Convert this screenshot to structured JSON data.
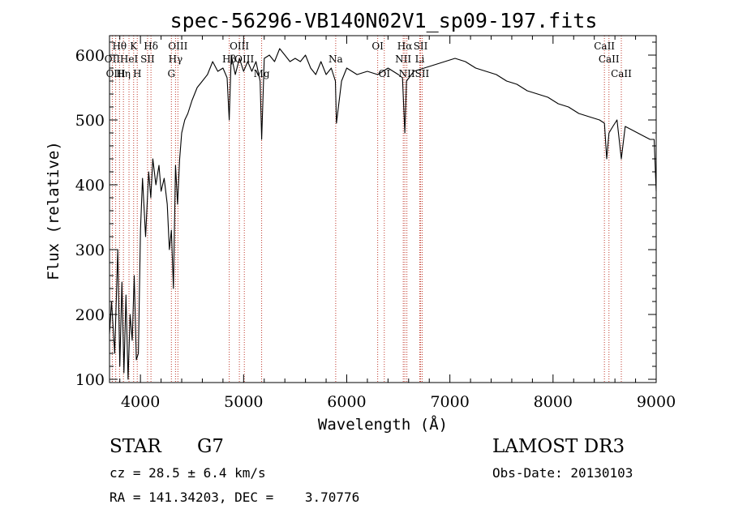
{
  "chart_data": {
    "type": "line",
    "title": "spec-56296-VB140N02V1_sp09-197.fits",
    "xlabel": "Wavelength (Å)",
    "ylabel": "Flux (relative)",
    "xlim": [
      3700,
      9000
    ],
    "ylim": [
      95,
      630
    ],
    "x_ticks": [
      4000,
      5000,
      6000,
      7000,
      8000,
      9000
    ],
    "y_ticks": [
      100,
      200,
      300,
      400,
      500,
      600
    ],
    "series": [
      {
        "name": "spectrum",
        "x": [
          3700,
          3720,
          3750,
          3780,
          3800,
          3820,
          3840,
          3860,
          3880,
          3900,
          3920,
          3940,
          3960,
          3980,
          4000,
          4020,
          4050,
          4080,
          4100,
          4120,
          4150,
          4180,
          4200,
          4230,
          4260,
          4280,
          4300,
          4320,
          4340,
          4360,
          4380,
          4400,
          4430,
          4460,
          4500,
          4550,
          4600,
          4650,
          4700,
          4750,
          4800,
          4840,
          4861,
          4880,
          4920,
          4960,
          5000,
          5040,
          5080,
          5120,
          5160,
          5175,
          5200,
          5250,
          5300,
          5350,
          5400,
          5450,
          5500,
          5550,
          5600,
          5650,
          5700,
          5750,
          5800,
          5850,
          5890,
          5900,
          5950,
          6000,
          6100,
          6200,
          6300,
          6400,
          6500,
          6540,
          6563,
          6580,
          6650,
          6750,
          6850,
          6950,
          7050,
          7150,
          7250,
          7350,
          7450,
          7550,
          7650,
          7750,
          7850,
          7950,
          8050,
          8150,
          8250,
          8350,
          8450,
          8498,
          8520,
          8542,
          8580,
          8620,
          8662,
          8700,
          8760,
          8820,
          8880,
          8940,
          8980,
          9000
        ],
        "y": [
          170,
          220,
          140,
          300,
          120,
          250,
          110,
          230,
          100,
          200,
          160,
          260,
          130,
          140,
          330,
          410,
          320,
          420,
          380,
          440,
          400,
          430,
          390,
          410,
          370,
          300,
          330,
          240,
          430,
          370,
          440,
          480,
          500,
          510,
          530,
          550,
          560,
          570,
          590,
          575,
          580,
          565,
          500,
          600,
          570,
          595,
          575,
          590,
          575,
          590,
          560,
          470,
          595,
          600,
          590,
          610,
          600,
          590,
          595,
          590,
          600,
          580,
          570,
          590,
          570,
          580,
          560,
          495,
          560,
          580,
          570,
          575,
          570,
          580,
          570,
          565,
          480,
          560,
          575,
          580,
          585,
          590,
          595,
          590,
          580,
          575,
          570,
          560,
          555,
          545,
          540,
          535,
          525,
          520,
          510,
          505,
          500,
          495,
          440,
          480,
          490,
          500,
          440,
          490,
          485,
          480,
          475,
          470,
          470,
          390
        ]
      }
    ],
    "spectral_lines": [
      {
        "label": "Hθ",
        "x": 3797,
        "row": 1
      },
      {
        "label": "OII",
        "x": 3727,
        "row": 2
      },
      {
        "label": "OIII",
        "x": 3760,
        "row": 3
      },
      {
        "label": "K",
        "x": 3934,
        "row": 1
      },
      {
        "label": "HeI",
        "x": 3889,
        "row": 2
      },
      {
        "label": "Hη",
        "x": 3835,
        "row": 3
      },
      {
        "label": "SII",
        "x": 4069,
        "row": 2
      },
      {
        "label": "H",
        "x": 3969,
        "row": 3
      },
      {
        "label": "Hδ",
        "x": 4102,
        "row": 1
      },
      {
        "label": "OIII",
        "x": 4363,
        "row": 1
      },
      {
        "label": "Hγ",
        "x": 4340,
        "row": 2
      },
      {
        "label": "G",
        "x": 4300,
        "row": 3
      },
      {
        "label": "OIII",
        "x": 4959,
        "row": 1
      },
      {
        "label": "Hβ",
        "x": 4861,
        "row": 2
      },
      {
        "label": "OIII",
        "x": 5007,
        "row": 2
      },
      {
        "label": "Mg",
        "x": 5175,
        "row": 3
      },
      {
        "label": "Na",
        "x": 5893,
        "row": 2
      },
      {
        "label": "OI",
        "x": 6300,
        "row": 1
      },
      {
        "label": "OI",
        "x": 6364,
        "row": 3
      },
      {
        "label": "Hα",
        "x": 6563,
        "row": 1
      },
      {
        "label": "SII",
        "x": 6716,
        "row": 1
      },
      {
        "label": "NII",
        "x": 6548,
        "row": 2
      },
      {
        "label": "NII",
        "x": 6583,
        "row": 3
      },
      {
        "label": "SII",
        "x": 6731,
        "row": 3
      },
      {
        "label": "Li",
        "x": 6708,
        "row": 2
      },
      {
        "label": "CaII",
        "x": 8498,
        "row": 1
      },
      {
        "label": "CaII",
        "x": 8542,
        "row": 2
      },
      {
        "label": "CaII",
        "x": 8662,
        "row": 3
      }
    ]
  },
  "info": {
    "object_class": "STAR",
    "subclass": "G7",
    "survey": "LAMOST DR3",
    "redshift": "cz = 28.5 ± 6.4 km/s",
    "obs_date": "Obs-Date: 20130103",
    "coords": "RA = 141.34203, DEC =    3.70776"
  },
  "colors": {
    "line_marker": "#c0392b",
    "spectrum": "#000000"
  }
}
